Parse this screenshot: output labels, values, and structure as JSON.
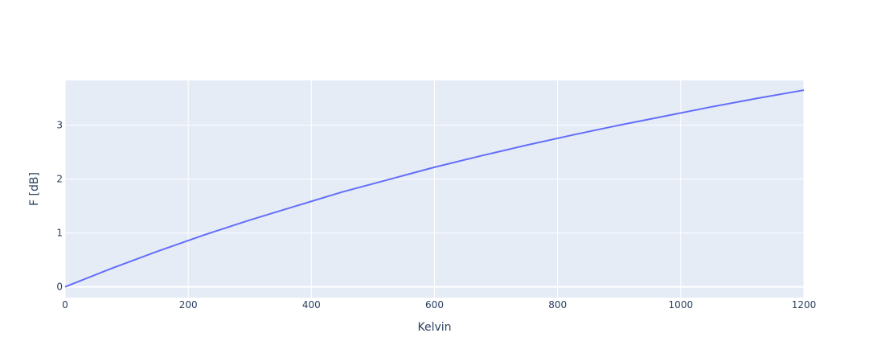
{
  "chart_data": {
    "type": "line",
    "xlabel": "Kelvin",
    "ylabel": "F [dB]",
    "xlim": [
      0,
      1200
    ],
    "ylim": [
      -0.2,
      3.83
    ],
    "xticks": [
      0,
      200,
      400,
      600,
      800,
      1000,
      1200
    ],
    "yticks": [
      0,
      1,
      2,
      3
    ],
    "xtick_labels": [
      "0",
      "200",
      "400",
      "600",
      "800",
      "1000",
      "1200"
    ],
    "ytick_labels": [
      "0",
      "1",
      "2",
      "3"
    ],
    "grid": true,
    "plot_background": "#e5ecf6",
    "grid_color": "#ffffff",
    "series": [
      {
        "color": "#636efa",
        "x": [
          0,
          75,
          150,
          225,
          300,
          375,
          450,
          525,
          600,
          675,
          750,
          825,
          900,
          975,
          1050,
          1125,
          1200
        ],
        "y": [
          0,
          0.34,
          0.66,
          0.96,
          1.24,
          1.5,
          1.76,
          1.99,
          2.22,
          2.43,
          2.63,
          2.82,
          3.0,
          3.17,
          3.34,
          3.5,
          3.65
        ]
      }
    ]
  }
}
